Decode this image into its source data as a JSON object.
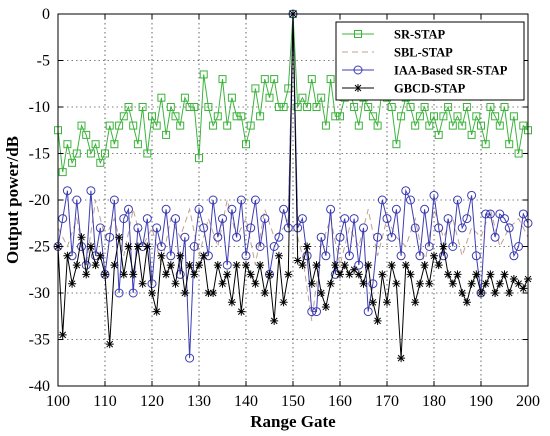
{
  "chart_data": {
    "type": "line",
    "xlabel": "Range Gate",
    "ylabel": "Output power/dB",
    "xlim": [
      100,
      200
    ],
    "ylim": [
      -40,
      0
    ],
    "xticks": [
      100,
      110,
      120,
      130,
      140,
      150,
      160,
      170,
      180,
      190,
      200
    ],
    "yticks": [
      0,
      -5,
      -10,
      -15,
      -20,
      -25,
      -30,
      -35,
      -40
    ],
    "grid": true,
    "legend_position": "top-right",
    "series": [
      {
        "name": "SR-STAP",
        "color": "#3cb43c",
        "marker": "square",
        "dash": "solid",
        "x": [
          100,
          101,
          102,
          103,
          104,
          105,
          106,
          107,
          108,
          109,
          110,
          111,
          112,
          113,
          114,
          115,
          116,
          117,
          118,
          119,
          120,
          121,
          122,
          123,
          124,
          125,
          126,
          127,
          128,
          129,
          130,
          131,
          132,
          133,
          134,
          135,
          136,
          137,
          138,
          139,
          140,
          141,
          142,
          143,
          144,
          145,
          146,
          147,
          148,
          149,
          150,
          151,
          152,
          153,
          154,
          155,
          156,
          157,
          158,
          159,
          160,
          161,
          162,
          163,
          164,
          165,
          166,
          167,
          168,
          169,
          170,
          171,
          172,
          173,
          174,
          175,
          176,
          177,
          178,
          179,
          180,
          181,
          182,
          183,
          184,
          185,
          186,
          187,
          188,
          189,
          190,
          191,
          192,
          193,
          194,
          195,
          196,
          197,
          198,
          199,
          200
        ],
        "y": [
          -12.5,
          -17,
          -14,
          -16,
          -15,
          -12,
          -13,
          -15,
          -14,
          -16,
          -15,
          -12,
          -14,
          -12,
          -11,
          -10,
          -12,
          -14,
          -10,
          -15,
          -11,
          -12,
          -9,
          -13,
          -10,
          -11,
          -12,
          -9,
          -10,
          -10,
          -15.5,
          -6.5,
          -10,
          -12,
          -11,
          -7,
          -12,
          -9,
          -11,
          -11,
          -14,
          -12,
          -8,
          -11,
          -7,
          -9,
          -7,
          -10,
          -10,
          -8,
          0,
          -10,
          -9,
          -10,
          -7,
          -10,
          -9,
          -12,
          -7,
          -11,
          -11,
          -9,
          -8,
          -10,
          -12,
          -9,
          -10,
          -11,
          -12,
          -8,
          -9,
          -10,
          -14,
          -11,
          -9,
          -10,
          -12,
          -11,
          -10,
          -12,
          -11,
          -13,
          -11,
          -10,
          -12,
          -11,
          -12,
          -10,
          -13,
          -11,
          -12,
          -14,
          -10,
          -11,
          -12,
          -10,
          -14,
          -11,
          -15,
          -12,
          -12.5
        ]
      },
      {
        "name": "SBL-STAP",
        "color": "#c0a090",
        "marker": "none",
        "dash": "dashed",
        "x": [
          100,
          102,
          104,
          106,
          108,
          110,
          112,
          114,
          116,
          118,
          120,
          122,
          124,
          126,
          128,
          130,
          132,
          134,
          136,
          138,
          140,
          142,
          144,
          146,
          148,
          149,
          150,
          151,
          152,
          154,
          156,
          158,
          160,
          162,
          164,
          166,
          168,
          170,
          172,
          174,
          176,
          178,
          180,
          182,
          184,
          186,
          188,
          190,
          192,
          194,
          196,
          198,
          200
        ],
        "y": [
          -23,
          -25,
          -22,
          -27,
          -20,
          -24,
          -22,
          -26,
          -21,
          -25,
          -23,
          -27,
          -22,
          -24,
          -21,
          -26,
          -22,
          -25,
          -20,
          -24,
          -22,
          -27,
          -21,
          -24,
          -23,
          -22,
          0,
          -24,
          -26,
          -33,
          -25,
          -22,
          -27,
          -23,
          -25,
          -21,
          -26,
          -22,
          -24,
          -25,
          -22,
          -27,
          -21,
          -24,
          -22,
          -26,
          -23,
          -24,
          -21,
          -25,
          -23,
          -22,
          -24
        ]
      },
      {
        "name": "IAA-Based SR-STAP",
        "color": "#3c3cb4",
        "marker": "circle",
        "dash": "solid",
        "x": [
          100,
          101,
          102,
          103,
          104,
          105,
          106,
          107,
          108,
          109,
          110,
          111,
          112,
          113,
          114,
          115,
          116,
          117,
          118,
          119,
          120,
          121,
          122,
          123,
          124,
          125,
          126,
          127,
          128,
          129,
          130,
          131,
          132,
          133,
          134,
          135,
          136,
          137,
          138,
          139,
          140,
          141,
          142,
          143,
          144,
          145,
          146,
          147,
          148,
          149,
          150,
          151,
          152,
          153,
          154,
          155,
          156,
          157,
          158,
          159,
          160,
          161,
          162,
          163,
          164,
          165,
          166,
          167,
          168,
          169,
          170,
          171,
          172,
          173,
          174,
          175,
          176,
          177,
          178,
          179,
          180,
          181,
          182,
          183,
          184,
          185,
          186,
          187,
          188,
          189,
          190,
          191,
          192,
          193,
          194,
          195,
          196,
          197,
          198,
          199,
          200
        ],
        "y": [
          -25,
          -22,
          -19,
          -26,
          -20,
          -25,
          -27,
          -19,
          -26,
          -23,
          -28,
          -24,
          -20,
          -30,
          -22,
          -21,
          -30,
          -23,
          -25,
          -22,
          -29,
          -23,
          -25,
          -21,
          -26,
          -22,
          -28,
          -24,
          -37,
          -25,
          -21,
          -23,
          -26,
          -20,
          -24,
          -22,
          -27,
          -21,
          -24,
          -20,
          -26,
          -23,
          -20,
          -25,
          -22,
          -28,
          -25,
          -24,
          -21,
          -23,
          0,
          -23,
          -22,
          -26,
          -32,
          -32,
          -24,
          -26,
          -21,
          -28,
          -24,
          -22,
          -26,
          -22,
          -27,
          -23,
          -32,
          -29,
          -24,
          -20,
          -22,
          -24,
          -21,
          -26,
          -19,
          -20,
          -23,
          -26,
          -21,
          -25,
          -19.5,
          -23,
          -26,
          -22,
          -25,
          -20,
          -23,
          -22,
          -19.5,
          -26,
          -30,
          -21.5,
          -21.5,
          -24,
          -21.5,
          -22,
          -23,
          -26,
          -25,
          -21.5,
          -22.5
        ]
      },
      {
        "name": "GBCD-STAP",
        "color": "#000000",
        "marker": "star",
        "dash": "solid",
        "x": [
          100,
          101,
          102,
          103,
          104,
          105,
          106,
          107,
          108,
          109,
          110,
          111,
          112,
          113,
          114,
          115,
          116,
          117,
          118,
          119,
          120,
          121,
          122,
          123,
          124,
          125,
          126,
          127,
          128,
          129,
          130,
          131,
          132,
          133,
          134,
          135,
          136,
          137,
          138,
          139,
          140,
          141,
          142,
          143,
          144,
          145,
          146,
          147,
          148,
          149,
          150,
          151,
          152,
          153,
          154,
          155,
          156,
          157,
          158,
          159,
          160,
          161,
          162,
          163,
          164,
          165,
          166,
          167,
          168,
          169,
          170,
          171,
          172,
          173,
          174,
          175,
          176,
          177,
          178,
          179,
          180,
          181,
          182,
          183,
          184,
          185,
          186,
          187,
          188,
          189,
          190,
          191,
          192,
          193,
          194,
          195,
          196,
          197,
          198,
          199,
          200
        ],
        "y": [
          -25,
          -34.5,
          -26,
          -29,
          -27,
          -24,
          -28,
          -25,
          -27,
          -26,
          -28,
          -35.5,
          -27,
          -24,
          -28,
          -25,
          -28,
          -25,
          -29,
          -25,
          -30,
          -32,
          -26,
          -28,
          -27,
          -29,
          -26,
          -30,
          -27,
          -28,
          -27,
          -26,
          -30,
          -30,
          -27,
          -29,
          -28,
          -31,
          -27,
          -32,
          -27,
          -28,
          -29,
          -27,
          -30,
          -28,
          -33,
          -26,
          -31,
          -28,
          0,
          -26.5,
          -27,
          -25,
          -29,
          -27,
          -30,
          -31.5,
          -29,
          -27,
          -28,
          -27,
          -28,
          -27.5,
          -28,
          -29,
          -27,
          -31,
          -33,
          -28,
          -31,
          -27,
          -29,
          -37,
          -27,
          -28,
          -31,
          -29,
          -27,
          -29,
          -26,
          -27,
          -25,
          -28,
          -29,
          -28,
          -30,
          -31,
          -29,
          -28,
          -30,
          -29,
          -28,
          -30,
          -29,
          -28,
          -30,
          -28.5,
          -29,
          -29.5,
          -28.5
        ]
      }
    ]
  }
}
